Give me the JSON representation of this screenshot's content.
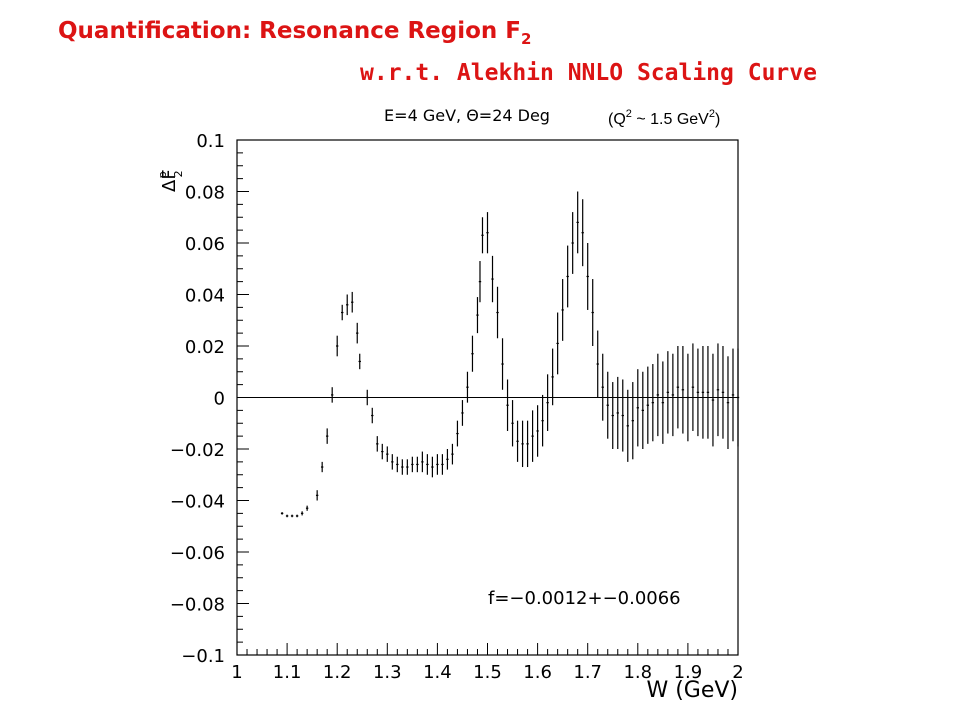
{
  "page": {
    "title_line1": "Quantification: Resonance Region F",
    "title_line1_sub": "2",
    "title_line2": "w.r.t. Alekhin NNLO Scaling Curve",
    "title_color": "#dc1414"
  },
  "chart_data": {
    "type": "scatter",
    "title": "E=4 GeV, Θ=24 Deg",
    "q2_note_prefix": "(Q",
    "q2_note_sup1": "2",
    "q2_note_mid": " ~ 1.5 GeV",
    "q2_note_sup2": "2",
    "q2_note_suffix": ")",
    "xlabel": "W (GeV)",
    "ylabel": "ΔF",
    "ylabel_sub": "2",
    "ylabel_sup": "p",
    "xlim": [
      1,
      2
    ],
    "ylim": [
      -0.1,
      0.1
    ],
    "x_ticks": [
      1,
      1.1,
      1.2,
      1.3,
      1.4,
      1.5,
      1.6,
      1.7,
      1.8,
      1.9,
      2
    ],
    "x_tick_labels": [
      "1",
      "1.1",
      "1.2",
      "1.3",
      "1.4",
      "1.5",
      "1.6",
      "1.7",
      "1.8",
      "1.9",
      "2"
    ],
    "y_ticks": [
      0.1,
      0.08,
      0.06,
      0.04,
      0.02,
      0,
      -0.02,
      -0.04,
      -0.06,
      -0.08,
      -0.1
    ],
    "y_tick_labels": [
      "0.1",
      "0.08",
      "0.06",
      "0.04",
      "0.02",
      "0",
      "−0.02",
      "−0.04",
      "−0.06",
      "−0.08",
      "−0.1"
    ],
    "zero_line": true,
    "annotation": "f=−0.0012+−0.0066",
    "series": [
      {
        "x": [
          1.09,
          1.1,
          1.11,
          1.12,
          1.13,
          1.14,
          1.16,
          1.17,
          1.18,
          1.19,
          1.2,
          1.21,
          1.22,
          1.23,
          1.24,
          1.245,
          1.26,
          1.27,
          1.28,
          1.29,
          1.3,
          1.31,
          1.32,
          1.33,
          1.34,
          1.35,
          1.36,
          1.37,
          1.38,
          1.39,
          1.4,
          1.41,
          1.42,
          1.43,
          1.44,
          1.45,
          1.46,
          1.47,
          1.48,
          1.485,
          1.49,
          1.5,
          1.51,
          1.52,
          1.53,
          1.54,
          1.55,
          1.56,
          1.57,
          1.58,
          1.59,
          1.6,
          1.61,
          1.62,
          1.63,
          1.64,
          1.65,
          1.66,
          1.67,
          1.68,
          1.69,
          1.7,
          1.71,
          1.72,
          1.73,
          1.74,
          1.75,
          1.76,
          1.77,
          1.78,
          1.79,
          1.8,
          1.81,
          1.82,
          1.83,
          1.84,
          1.85,
          1.86,
          1.87,
          1.88,
          1.89,
          1.9,
          1.91,
          1.92,
          1.93,
          1.94,
          1.95,
          1.96,
          1.97,
          1.98,
          1.99,
          2.0
        ],
        "y": [
          -0.045,
          -0.046,
          -0.046,
          -0.046,
          -0.045,
          -0.043,
          -0.038,
          -0.027,
          -0.015,
          0.001,
          0.02,
          0.033,
          0.036,
          0.037,
          0.025,
          0.014,
          0.0,
          -0.007,
          -0.018,
          -0.021,
          -0.022,
          -0.025,
          -0.026,
          -0.027,
          -0.027,
          -0.026,
          -0.026,
          -0.025,
          -0.026,
          -0.027,
          -0.026,
          -0.026,
          -0.024,
          -0.022,
          -0.014,
          -0.006,
          0.004,
          0.017,
          0.032,
          0.045,
          0.063,
          0.064,
          0.046,
          0.033,
          0.013,
          -0.003,
          -0.01,
          -0.017,
          -0.018,
          -0.018,
          -0.015,
          -0.013,
          -0.009,
          -0.002,
          0.008,
          0.021,
          0.034,
          0.047,
          0.06,
          0.068,
          0.064,
          0.047,
          0.033,
          0.013,
          0.004,
          -0.003,
          -0.007,
          -0.006,
          -0.007,
          -0.011,
          -0.009,
          -0.004,
          -0.005,
          -0.003,
          -0.002,
          0.001,
          -0.002,
          0.002,
          0.001,
          0.004,
          0.003,
          0.0,
          0.004,
          0.002,
          0.002,
          0.002,
          -0.001,
          0.003,
          0.002,
          -0.002,
          0.001,
          0.0
        ],
        "yerr": [
          0.0005,
          0.0005,
          0.0005,
          0.0005,
          0.0008,
          0.001,
          0.002,
          0.002,
          0.003,
          0.003,
          0.004,
          0.003,
          0.004,
          0.004,
          0.004,
          0.003,
          0.003,
          0.003,
          0.003,
          0.003,
          0.003,
          0.003,
          0.003,
          0.003,
          0.003,
          0.003,
          0.003,
          0.004,
          0.004,
          0.004,
          0.004,
          0.004,
          0.004,
          0.004,
          0.005,
          0.005,
          0.006,
          0.007,
          0.007,
          0.008,
          0.007,
          0.008,
          0.009,
          0.01,
          0.01,
          0.01,
          0.009,
          0.008,
          0.009,
          0.009,
          0.01,
          0.01,
          0.01,
          0.011,
          0.011,
          0.012,
          0.012,
          0.012,
          0.012,
          0.012,
          0.013,
          0.013,
          0.013,
          0.013,
          0.013,
          0.013,
          0.013,
          0.014,
          0.014,
          0.014,
          0.015,
          0.015,
          0.015,
          0.015,
          0.015,
          0.016,
          0.016,
          0.016,
          0.016,
          0.016,
          0.017,
          0.017,
          0.017,
          0.017,
          0.018,
          0.018,
          0.018,
          0.018,
          0.018,
          0.018,
          0.018,
          0.019
        ]
      }
    ]
  }
}
